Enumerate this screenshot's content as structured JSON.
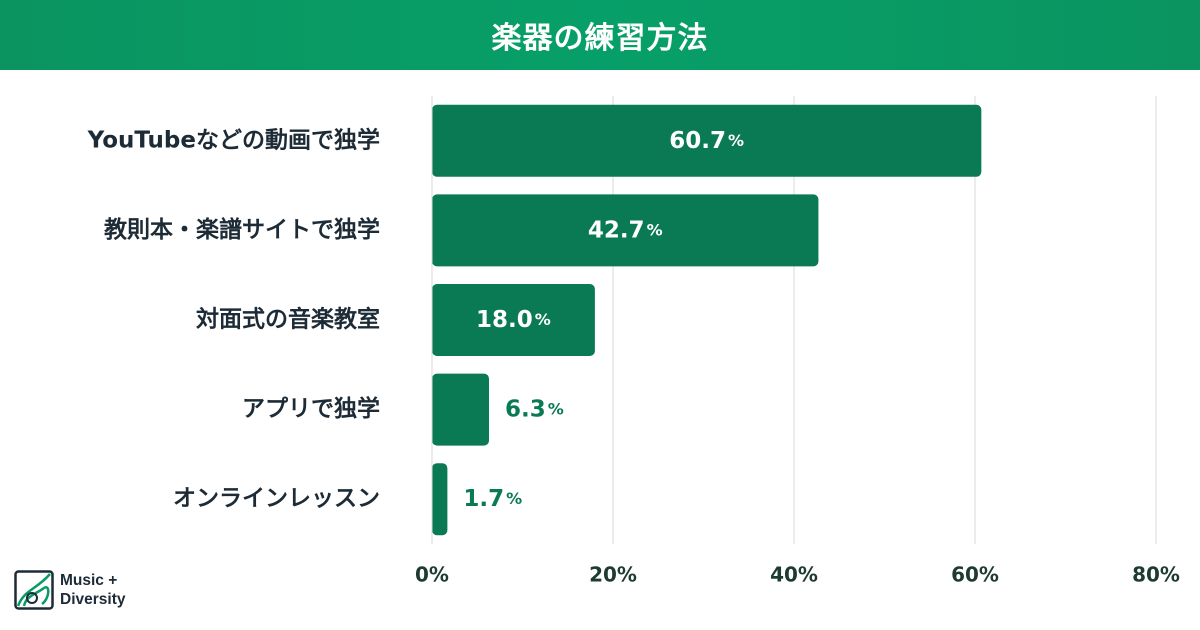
{
  "header": {
    "title": "楽器の練習方法"
  },
  "colors": {
    "bar": "#0a7a55",
    "header": "#079f69",
    "value_outside": "#0a7a55",
    "axis_text": "#1d3b2f",
    "grid": "#d9d9d9"
  },
  "chart_data": {
    "type": "bar",
    "orientation": "horizontal",
    "categories": [
      "YouTubeなどの動画で独学",
      "教則本・楽譜サイトで独学",
      "対面式の音楽教室",
      "アプリで独学",
      "オンラインレッスン"
    ],
    "values": [
      60.7,
      42.7,
      18.0,
      6.3,
      1.7
    ],
    "value_labels": [
      "60.7",
      "42.7",
      "18.0",
      "6.3",
      "1.7"
    ],
    "value_suffix": "%",
    "xlim": [
      0,
      80
    ],
    "xticks": [
      0,
      20,
      40,
      60,
      80
    ],
    "xtick_labels": [
      "0%",
      "20%",
      "40%",
      "60%",
      "80%"
    ],
    "grid": true
  },
  "logo": {
    "line1": "Music +",
    "line2": "Diversity"
  }
}
